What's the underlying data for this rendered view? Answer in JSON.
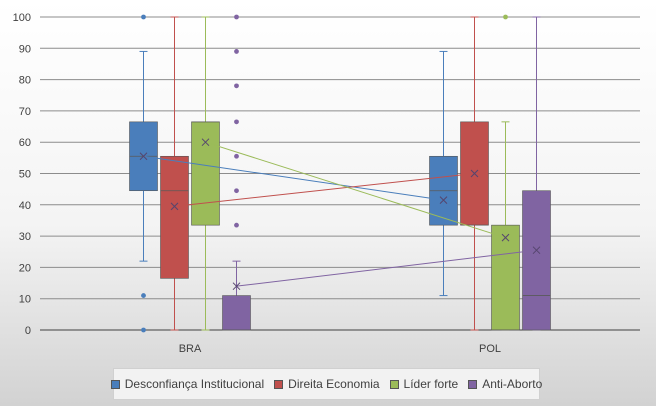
{
  "chart_data": {
    "type": "boxplot",
    "categories": [
      "BRA",
      "POL"
    ],
    "ylim": [
      0,
      100
    ],
    "yticks": [
      "0",
      "10",
      "20",
      "30",
      "40",
      "50",
      "60",
      "70",
      "80",
      "90",
      "100"
    ],
    "grid": true,
    "legend_position": "bottom",
    "series": [
      {
        "name": "Desconfiança Institucional",
        "color": "#4a7ebb",
        "boxes": [
          {
            "min": 22,
            "q1": 44.5,
            "median": 55.5,
            "q3": 66.5,
            "max": 89,
            "mean": 55.5,
            "outliers": [
              100,
              11,
              0
            ]
          },
          {
            "min": 11,
            "q1": 33.5,
            "median": 44.5,
            "q3": 55.5,
            "max": 89,
            "mean": 41.5,
            "outliers": []
          }
        ]
      },
      {
        "name": "Direita Economia",
        "color": "#c0504d",
        "boxes": [
          {
            "min": 0,
            "q1": 16.5,
            "median": 44.5,
            "q3": 55.5,
            "max": 100,
            "mean": 39.5,
            "outliers": []
          },
          {
            "min": 0,
            "q1": 33.5,
            "median": 33.5,
            "q3": 66.5,
            "max": 100,
            "mean": 50,
            "outliers": []
          }
        ]
      },
      {
        "name": "Líder forte",
        "color": "#9bbb59",
        "boxes": [
          {
            "min": 0,
            "q1": 33.5,
            "median": 66.5,
            "q3": 66.5,
            "max": 100,
            "mean": 60,
            "outliers": []
          },
          {
            "min": 0,
            "q1": 0,
            "median": 0,
            "q3": 33.5,
            "max": 66.5,
            "mean": 29.5,
            "outliers": [
              100
            ]
          }
        ]
      },
      {
        "name": "Anti-Aborto",
        "color": "#8064a2",
        "boxes": [
          {
            "min": 0,
            "q1": 0,
            "median": 0,
            "q3": 11,
            "max": 22,
            "mean": 14,
            "outliers": [
              100,
              89,
              78,
              66.5,
              55.5,
              44.5,
              33.5
            ]
          },
          {
            "min": 0,
            "q1": 0,
            "median": 11,
            "q3": 44.5,
            "max": 100,
            "mean": 25.5,
            "outliers": []
          }
        ]
      }
    ]
  }
}
